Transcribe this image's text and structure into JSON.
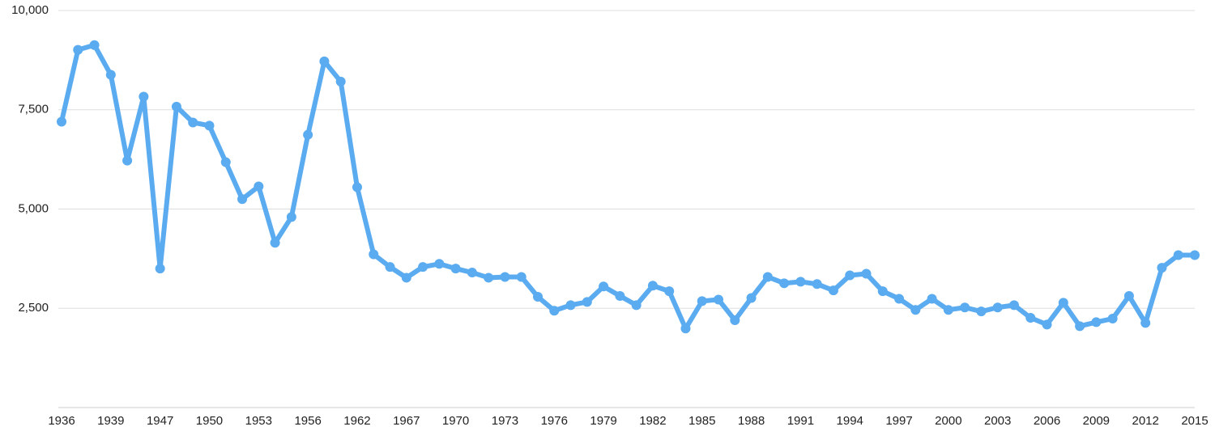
{
  "chart_data": {
    "type": "line",
    "categories": [
      "1936",
      null,
      null,
      "1939",
      null,
      null,
      "1947",
      null,
      null,
      "1950",
      null,
      null,
      "1953",
      null,
      null,
      "1956",
      null,
      null,
      "1962",
      null,
      null,
      "1967",
      null,
      null,
      "1970",
      null,
      null,
      "1973",
      null,
      null,
      "1976",
      null,
      null,
      "1979",
      null,
      null,
      "1982",
      null,
      null,
      "1985",
      null,
      null,
      "1988",
      null,
      null,
      "1991",
      null,
      null,
      "1994",
      null,
      null,
      "1997",
      null,
      null,
      "2000",
      null,
      null,
      "2003",
      null,
      null,
      "2006",
      null,
      null,
      "2009",
      null,
      null,
      "2012",
      null,
      null,
      "2015"
    ],
    "series": [
      {
        "color": "#5aabf0",
        "values": [
          7200,
          9010,
          9130,
          8380,
          6220,
          7830,
          3500,
          7580,
          7180,
          7100,
          6180,
          5250,
          5570,
          4150,
          4800,
          6870,
          8720,
          8210,
          5550,
          3860,
          3540,
          3270,
          3540,
          3620,
          3500,
          3400,
          3270,
          3290,
          3290,
          2790,
          2440,
          2580,
          2660,
          3050,
          2810,
          2580,
          3070,
          2930,
          1990,
          2680,
          2720,
          2200,
          2760,
          3290,
          3130,
          3170,
          3110,
          2950,
          3330,
          3370,
          2930,
          2740,
          2460,
          2740,
          2460,
          2520,
          2420,
          2520,
          2580,
          2260,
          2090,
          2640,
          2050,
          2150,
          2240,
          2810,
          2130,
          3520,
          3840,
          3840
        ]
      }
    ],
    "ylim": [
      0,
      10000
    ],
    "yticks": [
      {
        "value": 2500,
        "label": "2,500"
      },
      {
        "value": 5000,
        "label": "5,000"
      },
      {
        "value": 7500,
        "label": "7,500"
      },
      {
        "value": 10000,
        "label": "10,000"
      }
    ],
    "grid": true
  }
}
